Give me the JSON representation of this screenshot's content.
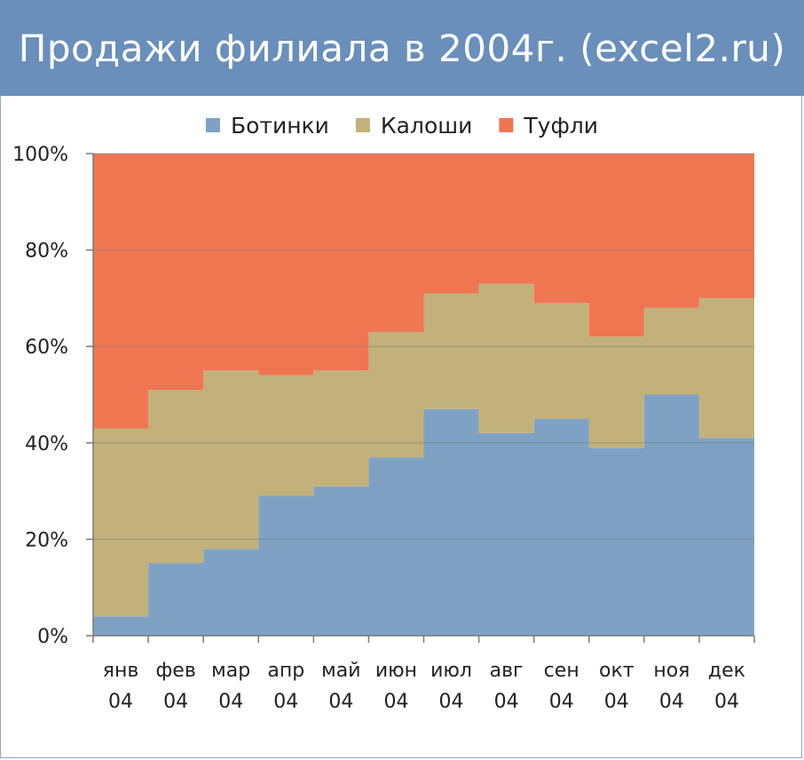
{
  "title": "Продажи филиала в 2004г. (excel2.ru)",
  "colors": {
    "header_bg": "#6a8fba",
    "Ботинки": "#7fa2c4",
    "Калоши": "#c2b17a",
    "Туфли": "#f07652",
    "grid": "#7a7a7a"
  },
  "chart_data": {
    "type": "area",
    "subtype": "stacked-100-step",
    "title": "Продажи филиала в 2004г. (excel2.ru)",
    "legend_position": "top",
    "grid": true,
    "ylim": [
      0,
      100
    ],
    "y_ticks": [
      "0%",
      "20%",
      "40%",
      "60%",
      "80%",
      "100%"
    ],
    "categories": [
      [
        "янв",
        "04"
      ],
      [
        "фев",
        "04"
      ],
      [
        "мар",
        "04"
      ],
      [
        "апр",
        "04"
      ],
      [
        "май",
        "04"
      ],
      [
        "июн",
        "04"
      ],
      [
        "июл",
        "04"
      ],
      [
        "авг",
        "04"
      ],
      [
        "сен",
        "04"
      ],
      [
        "окт",
        "04"
      ],
      [
        "ноя",
        "04"
      ],
      [
        "дек",
        "04"
      ]
    ],
    "series": [
      {
        "name": "Ботинки",
        "color": "#7fa2c4",
        "values": [
          4,
          15,
          18,
          29,
          31,
          37,
          47,
          42,
          45,
          39,
          50,
          41
        ]
      },
      {
        "name": "Калоши",
        "color": "#c2b17a",
        "values": [
          39,
          36,
          37,
          25,
          24,
          26,
          24,
          31,
          24,
          23,
          18,
          29
        ]
      },
      {
        "name": "Туфли",
        "color": "#f07652",
        "values": [
          57,
          49,
          45,
          46,
          45,
          37,
          29,
          27,
          31,
          38,
          32,
          30
        ]
      }
    ]
  }
}
